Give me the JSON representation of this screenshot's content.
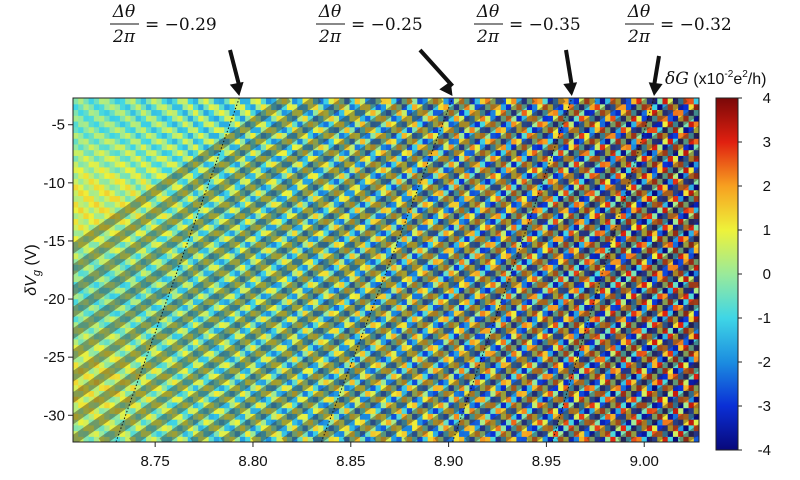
{
  "chart_data": {
    "type": "heatmap",
    "x_ticks": [
      "8.75",
      "8.80",
      "8.85",
      "8.90",
      "8.95",
      "9.00"
    ],
    "x_tick_values": [
      8.75,
      8.8,
      8.85,
      8.9,
      8.95,
      9.0
    ],
    "xlim": [
      8.708,
      9.028
    ],
    "y_ticks": [
      "-5",
      "-10",
      "-15",
      "-20",
      "-25",
      "-30"
    ],
    "y_tick_values": [
      -5,
      -10,
      -15,
      -20,
      -25,
      -30
    ],
    "ylim": [
      -32.3,
      -2.7
    ],
    "ylabel_main": "δV",
    "ylabel_sub": "g",
    "ylabel_unit": " (V)",
    "colorbar": {
      "label_symbol": "δG",
      "label_open": " (x10",
      "label_exp": "-2",
      "label_units": "e",
      "label_units_exp": "2",
      "label_close": "/h)",
      "ticks": [
        "4",
        "3",
        "2",
        "1",
        "0",
        "-1",
        "-2",
        "-3",
        "-4"
      ],
      "tick_values": [
        4,
        3,
        2,
        1,
        0,
        -1,
        -2,
        -3,
        -4
      ],
      "range": [
        -4,
        4
      ],
      "colormap": [
        "#08087a",
        "#0a2fd6",
        "#1c8de0",
        "#3fd6e6",
        "#9aea9a",
        "#eef23a",
        "#f7a020",
        "#e02010",
        "#7a0808"
      ]
    },
    "annotations": [
      {
        "num": "Δθ",
        "den": "2π",
        "value": "= −0.29",
        "x": 8.793,
        "y_tip": -3.0
      },
      {
        "num": "Δθ",
        "den": "2π",
        "value": "= −0.25",
        "x": 8.902,
        "y_tip": -3.0
      },
      {
        "num": "Δθ",
        "den": "2π",
        "value": "= −0.35",
        "x": 8.963,
        "y_tip": -3.0
      },
      {
        "num": "Δθ",
        "den": "2π",
        "value": "= −0.32",
        "x": 9.005,
        "y_tip": -3.0
      }
    ],
    "dotted_lines": [
      {
        "x_bottom": 8.73,
        "x_top": 8.793
      },
      {
        "x_bottom": 8.835,
        "x_top": 8.902
      },
      {
        "x_bottom": 8.902,
        "x_top": 8.963
      },
      {
        "x_bottom": 8.953,
        "x_top": 9.005
      }
    ],
    "stripe_slope_x_per_y": -0.0085,
    "fringe_period_x": 0.013
  }
}
